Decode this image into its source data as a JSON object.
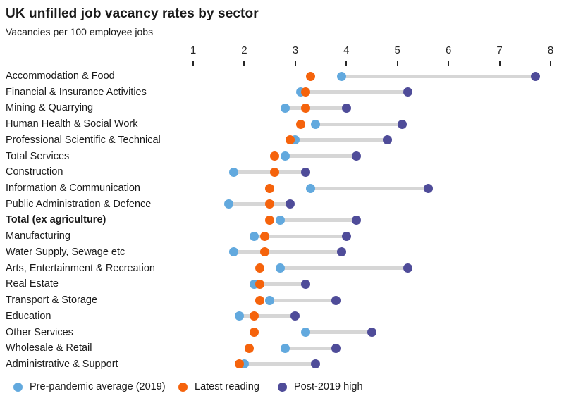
{
  "title": "UK unfilled job vacancy rates by sector",
  "subtitle": "Vacancies per 100 employee jobs",
  "colors": {
    "pre": "#62A9DE",
    "latest": "#F5630C",
    "high": "#4F4C99",
    "connector": "#D6D6D6",
    "text": "#1A1A1A"
  },
  "legend": {
    "items": [
      {
        "key": "pre",
        "label": "Pre-pandemic average (2019)"
      },
      {
        "key": "latest",
        "label": "Latest reading"
      },
      {
        "key": "high",
        "label": "Post-2019 high"
      }
    ]
  },
  "chart_data": {
    "type": "scatter",
    "subtype": "dumbbell-dot-plot",
    "title": "UK unfilled job vacancy rates by sector",
    "xlabel": "Vacancies per 100 employee jobs",
    "xlim": [
      1,
      8
    ],
    "ticks": [
      1,
      2,
      3,
      4,
      5,
      6,
      7,
      8
    ],
    "grid": false,
    "legend_position": "bottom",
    "bold_category": "Total (ex agriculture)",
    "categories": [
      "Accommodation & Food",
      "Financial & Insurance Activities",
      "Mining & Quarrying",
      "Human Health & Social Work",
      "Professional Scientific & Technical",
      "Total Services",
      "Construction",
      "Information & Communication",
      "Public Administration & Defence",
      "Total (ex agriculture)",
      "Manufacturing",
      "Water Supply, Sewage etc",
      "Arts, Entertainment & Recreation",
      "Real Estate",
      "Transport & Storage",
      "Education",
      "Other Services",
      "Wholesale & Retail",
      "Administrative & Support"
    ],
    "series": [
      {
        "name": "Pre-pandemic average (2019)",
        "key": "pre",
        "values": [
          3.9,
          3.1,
          2.8,
          3.4,
          3.0,
          2.8,
          1.8,
          3.3,
          1.7,
          2.7,
          2.2,
          1.8,
          2.7,
          2.2,
          2.5,
          1.9,
          3.2,
          2.8,
          2.0
        ]
      },
      {
        "name": "Latest reading",
        "key": "latest",
        "values": [
          3.3,
          3.2,
          3.2,
          3.1,
          2.9,
          2.6,
          2.6,
          2.5,
          2.5,
          2.5,
          2.4,
          2.4,
          2.3,
          2.3,
          2.3,
          2.2,
          2.2,
          2.1,
          1.9
        ]
      },
      {
        "name": "Post-2019 high",
        "key": "high",
        "values": [
          7.7,
          5.2,
          4.0,
          5.1,
          4.8,
          4.2,
          3.2,
          5.6,
          2.9,
          4.2,
          4.0,
          3.9,
          5.2,
          3.2,
          3.8,
          3.0,
          4.5,
          3.8,
          3.4
        ]
      }
    ]
  }
}
